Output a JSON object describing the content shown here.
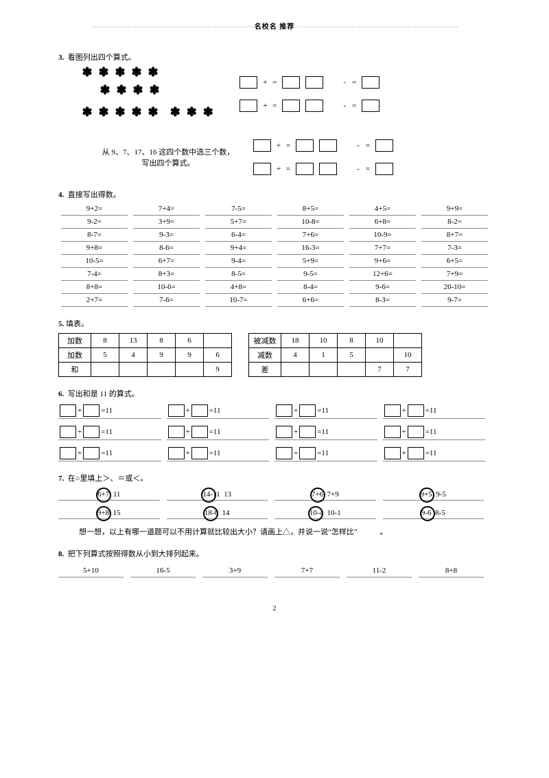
{
  "header": {
    "text": "名校名 推荐"
  },
  "q3": {
    "num": "3.",
    "title": "看图列出四个算式。",
    "sub": "从 9、7、17、16 这四个数中选三个数，写出四个算式。"
  },
  "q4": {
    "num": "4.",
    "title": "直接写出得数。",
    "rows": [
      [
        "9+2=",
        "7+4=",
        "7-5=",
        "8+5=",
        "4+5=",
        "9+9="
      ],
      [
        "9-2=",
        "3+9=",
        "5+7=",
        "10-8=",
        "6+8=",
        "8-2="
      ],
      [
        "8-7=",
        "9-3=",
        "6-4=",
        "7+6=",
        "10-9=",
        "8+7="
      ],
      [
        "9+8=",
        "8-6=",
        "9+4=",
        "16-3=",
        "7+7=",
        "7-3="
      ],
      [
        "10-5=",
        "6+7=",
        "9-4=",
        "5+9=",
        "9+6=",
        "6+5="
      ],
      [
        "7-4=",
        "8+3=",
        "8-5=",
        "9-5=",
        "12+6=",
        "7+9="
      ],
      [
        "8+8=",
        "10-6=",
        "4+8=",
        "8-4=",
        "9-6=",
        "20-10="
      ],
      [
        "2+7=",
        "7-6=",
        "10-7=",
        "6+6=",
        "8-3=",
        "9-7="
      ]
    ]
  },
  "q5": {
    "num": "5.",
    "title": "填表。",
    "left": {
      "labels": [
        "加数",
        "加数",
        "和"
      ],
      "rows": [
        [
          "8",
          "13",
          "8",
          "6",
          ""
        ],
        [
          "5",
          "4",
          "9",
          "9",
          "6"
        ],
        [
          "",
          "",
          "",
          "",
          "9"
        ]
      ]
    },
    "right": {
      "labels": [
        "被减数",
        "减数",
        "差"
      ],
      "rows": [
        [
          "18",
          "10",
          "8",
          "10",
          ""
        ],
        [
          "4",
          "1",
          "5",
          "",
          "10"
        ],
        [
          "",
          "",
          "",
          "7",
          "7"
        ]
      ]
    }
  },
  "q6": {
    "num": "6.",
    "title": "写出和是 11 的算式。",
    "eq": "=11",
    "plus": "+"
  },
  "q7": {
    "num": "7.",
    "title": "在○里填上＞、＝或＜。",
    "rows": [
      [
        [
          "6+7",
          "11"
        ],
        [
          "14-11",
          "13"
        ],
        [
          "7+6",
          "7+9"
        ],
        [
          "9+5",
          "9-5"
        ]
      ],
      [
        [
          "9+8",
          "15"
        ],
        [
          "18-6",
          "14"
        ],
        [
          "10-4",
          "10-1"
        ],
        [
          "9-6",
          "8-5"
        ]
      ]
    ],
    "note": "想一想，以上有哪一道题可以不用计算就比较出大小？请画上△，并说一说“怎样比”",
    "dot": "。"
  },
  "q8": {
    "num": "8.",
    "title": "把下列算式按照得数从小到大排列起来。",
    "items": [
      "5+10",
      "16-5",
      "3+9",
      "7+7",
      "11-2",
      "8+8"
    ]
  },
  "page": "2"
}
